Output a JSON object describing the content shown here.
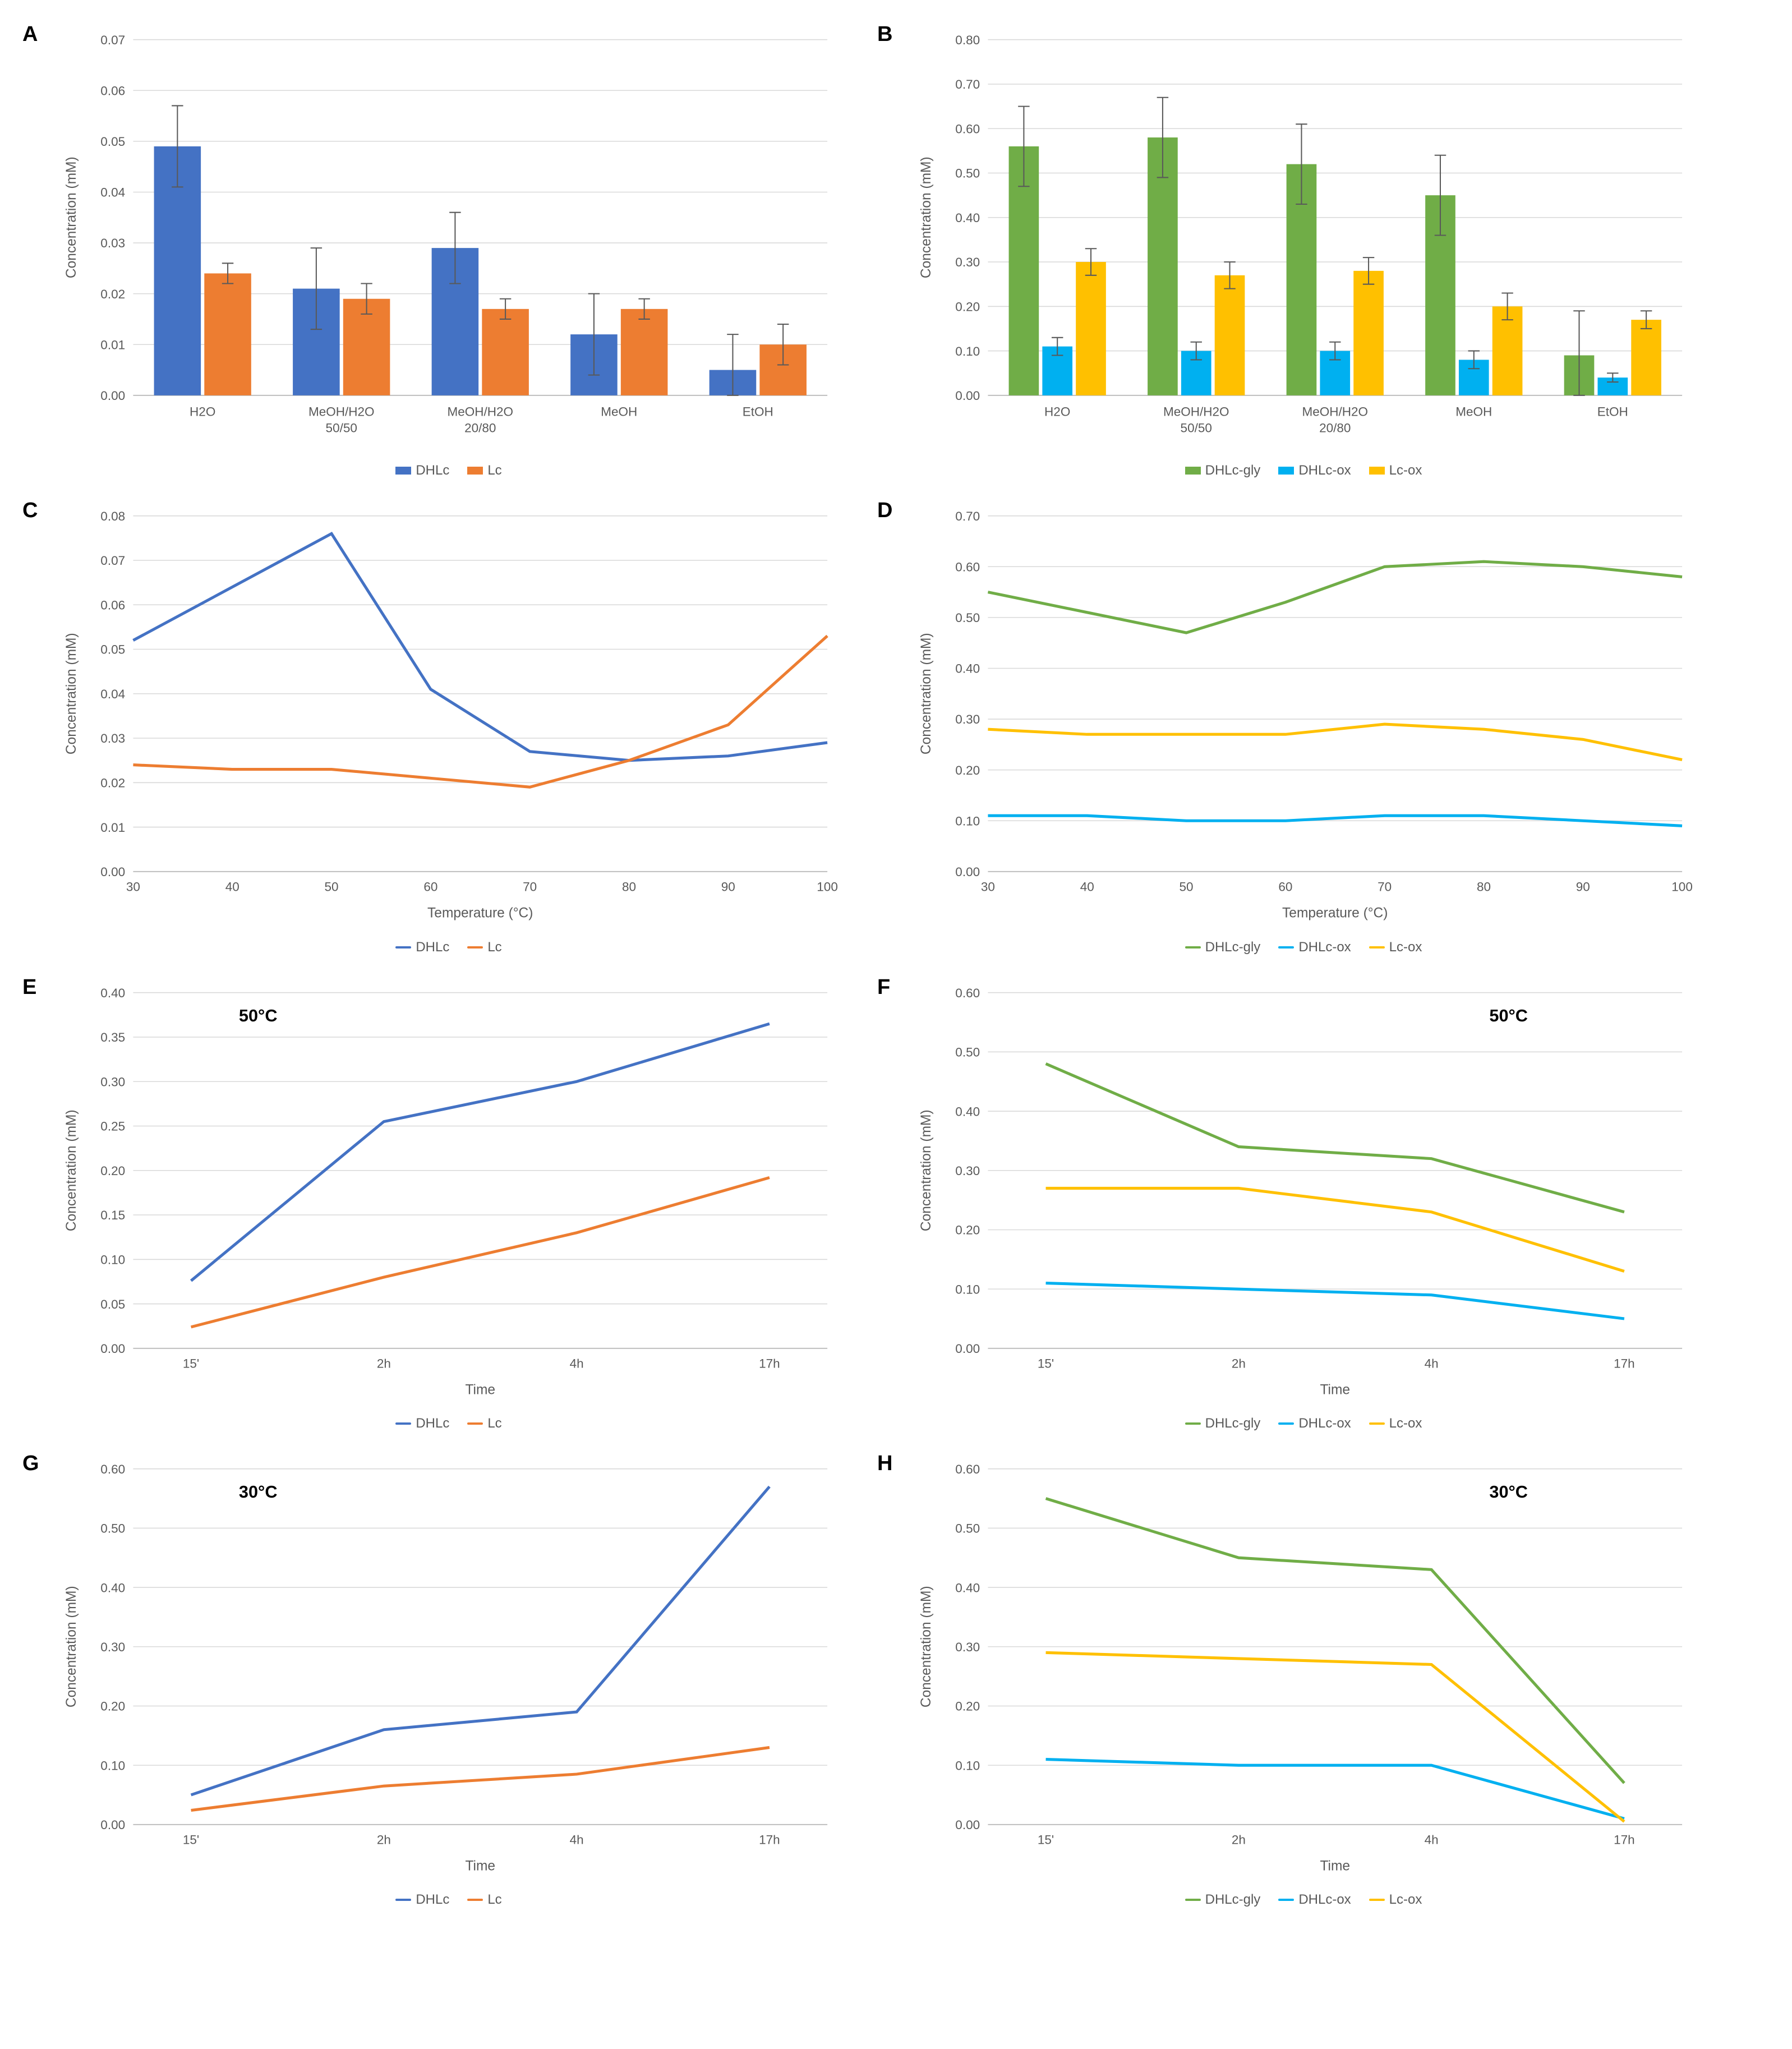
{
  "colors": {
    "blue": "#4472c4",
    "orange": "#ed7d31",
    "green": "#70ad47",
    "cyan": "#00b0f0",
    "yellow": "#ffc000",
    "axis": "#bfbfbf",
    "grid": "#d9d9d9",
    "text": "#595959",
    "bg": "#ffffff"
  },
  "panelLabels": {
    "A": "A",
    "B": "B",
    "C": "C",
    "D": "D",
    "E": "E",
    "F": "F",
    "G": "G",
    "H": "H"
  },
  "axisTitles": {
    "conc": "Concentration (mM)",
    "temp": "Temperature (°C)",
    "time": "Time"
  },
  "legends": {
    "two": [
      {
        "label": "DHLc",
        "color": "#4472c4"
      },
      {
        "label": "Lc",
        "color": "#ed7d31"
      }
    ],
    "three": [
      {
        "label": "DHLc-gly",
        "color": "#70ad47"
      },
      {
        "label": "DHLc-ox",
        "color": "#00b0f0"
      },
      {
        "label": "Lc-ox",
        "color": "#ffc000"
      }
    ]
  },
  "A": {
    "type": "bar",
    "categories": [
      "H2O",
      "MeOH/H2O\n50/50",
      "MeOH/H2O\n20/80",
      "MeOH",
      "EtOH"
    ],
    "ymax": 0.07,
    "ystep": 0.01,
    "series": [
      {
        "name": "DHLc",
        "color": "#4472c4",
        "values": [
          0.049,
          0.021,
          0.029,
          0.012,
          0.005
        ],
        "err": [
          0.008,
          0.008,
          0.007,
          0.008,
          0.007
        ]
      },
      {
        "name": "Lc",
        "color": "#ed7d31",
        "values": [
          0.024,
          0.019,
          0.017,
          0.017,
          0.01
        ],
        "err": [
          0.002,
          0.003,
          0.002,
          0.002,
          0.004
        ]
      }
    ]
  },
  "B": {
    "type": "bar",
    "categories": [
      "H2O",
      "MeOH/H2O\n50/50",
      "MeOH/H2O\n20/80",
      "MeOH",
      "EtOH"
    ],
    "ymax": 0.8,
    "ystep": 0.1,
    "series": [
      {
        "name": "DHLc-gly",
        "color": "#70ad47",
        "values": [
          0.56,
          0.58,
          0.52,
          0.45,
          0.09
        ],
        "err": [
          0.09,
          0.09,
          0.09,
          0.09,
          0.1
        ]
      },
      {
        "name": "DHLc-ox",
        "color": "#00b0f0",
        "values": [
          0.11,
          0.1,
          0.1,
          0.08,
          0.04
        ],
        "err": [
          0.02,
          0.02,
          0.02,
          0.02,
          0.01
        ]
      },
      {
        "name": "Lc-ox",
        "color": "#ffc000",
        "values": [
          0.3,
          0.27,
          0.28,
          0.2,
          0.17
        ],
        "err": [
          0.03,
          0.03,
          0.03,
          0.03,
          0.02
        ]
      }
    ]
  },
  "C": {
    "type": "line",
    "xvals": [
      30,
      40,
      50,
      60,
      70,
      80,
      90,
      100
    ],
    "xmin": 30,
    "xmax": 100,
    "xstep": 10,
    "ymax": 0.08,
    "ystep": 0.01,
    "xlabel": "Temperature (°C)",
    "series": [
      {
        "name": "DHLc",
        "color": "#4472c4",
        "values": [
          0.052,
          0.064,
          0.076,
          0.041,
          0.027,
          0.025,
          0.026,
          0.029
        ]
      },
      {
        "name": "Lc",
        "color": "#ed7d31",
        "values": [
          0.024,
          0.023,
          0.023,
          0.021,
          0.019,
          0.025,
          0.033,
          0.053
        ]
      }
    ]
  },
  "D": {
    "type": "line",
    "xvals": [
      30,
      40,
      50,
      60,
      70,
      80,
      90,
      100
    ],
    "xmin": 30,
    "xmax": 100,
    "xstep": 10,
    "ymax": 0.7,
    "ystep": 0.1,
    "xlabel": "Temperature (°C)",
    "series": [
      {
        "name": "DHLc-gly",
        "color": "#70ad47",
        "values": [
          0.55,
          0.51,
          0.47,
          0.53,
          0.6,
          0.61,
          0.6,
          0.58
        ]
      },
      {
        "name": "DHLc-ox",
        "color": "#00b0f0",
        "values": [
          0.11,
          0.11,
          0.1,
          0.1,
          0.11,
          0.11,
          0.1,
          0.09
        ]
      },
      {
        "name": "Lc-ox",
        "color": "#ffc000",
        "values": [
          0.28,
          0.27,
          0.27,
          0.27,
          0.29,
          0.28,
          0.26,
          0.22
        ]
      }
    ]
  },
  "E": {
    "type": "line-cat",
    "categories": [
      "15'",
      "2h",
      "4h",
      "17h"
    ],
    "ymax": 0.4,
    "ystep": 0.05,
    "xlabel": "Time",
    "annot": "50°C",
    "annotPos": "left",
    "series": [
      {
        "name": "DHLc",
        "color": "#4472c4",
        "values": [
          0.076,
          0.255,
          0.3,
          0.365
        ]
      },
      {
        "name": "Lc",
        "color": "#ed7d31",
        "values": [
          0.024,
          0.08,
          0.13,
          0.192
        ]
      }
    ]
  },
  "F": {
    "type": "line-cat",
    "categories": [
      "15'",
      "2h",
      "4h",
      "17h"
    ],
    "ymax": 0.6,
    "ystep": 0.1,
    "xlabel": "Time",
    "annot": "50°C",
    "annotPos": "right",
    "series": [
      {
        "name": "DHLc-gly",
        "color": "#70ad47",
        "values": [
          0.48,
          0.34,
          0.32,
          0.23
        ]
      },
      {
        "name": "DHLc-ox",
        "color": "#00b0f0",
        "values": [
          0.11,
          0.1,
          0.09,
          0.05
        ]
      },
      {
        "name": "Lc-ox",
        "color": "#ffc000",
        "values": [
          0.27,
          0.27,
          0.23,
          0.13
        ]
      }
    ]
  },
  "G": {
    "type": "line-cat",
    "categories": [
      "15'",
      "2h",
      "4h",
      "17h"
    ],
    "ymax": 0.6,
    "ystep": 0.1,
    "xlabel": "Time",
    "annot": "30°C",
    "annotPos": "left",
    "series": [
      {
        "name": "DHLc",
        "color": "#4472c4",
        "values": [
          0.05,
          0.16,
          0.19,
          0.57
        ]
      },
      {
        "name": "Lc",
        "color": "#ed7d31",
        "values": [
          0.024,
          0.065,
          0.085,
          0.13
        ]
      }
    ]
  },
  "H": {
    "type": "line-cat",
    "categories": [
      "15'",
      "2h",
      "4h",
      "17h"
    ],
    "ymax": 0.6,
    "ystep": 0.1,
    "xlabel": "Time",
    "annot": "30°C",
    "annotPos": "right",
    "series": [
      {
        "name": "DHLc-gly",
        "color": "#70ad47",
        "values": [
          0.55,
          0.45,
          0.43,
          0.07
        ]
      },
      {
        "name": "DHLc-ox",
        "color": "#00b0f0",
        "values": [
          0.11,
          0.1,
          0.1,
          0.01
        ]
      },
      {
        "name": "Lc-ox",
        "color": "#ffc000",
        "values": [
          0.29,
          0.28,
          0.27,
          0.005
        ]
      }
    ]
  }
}
